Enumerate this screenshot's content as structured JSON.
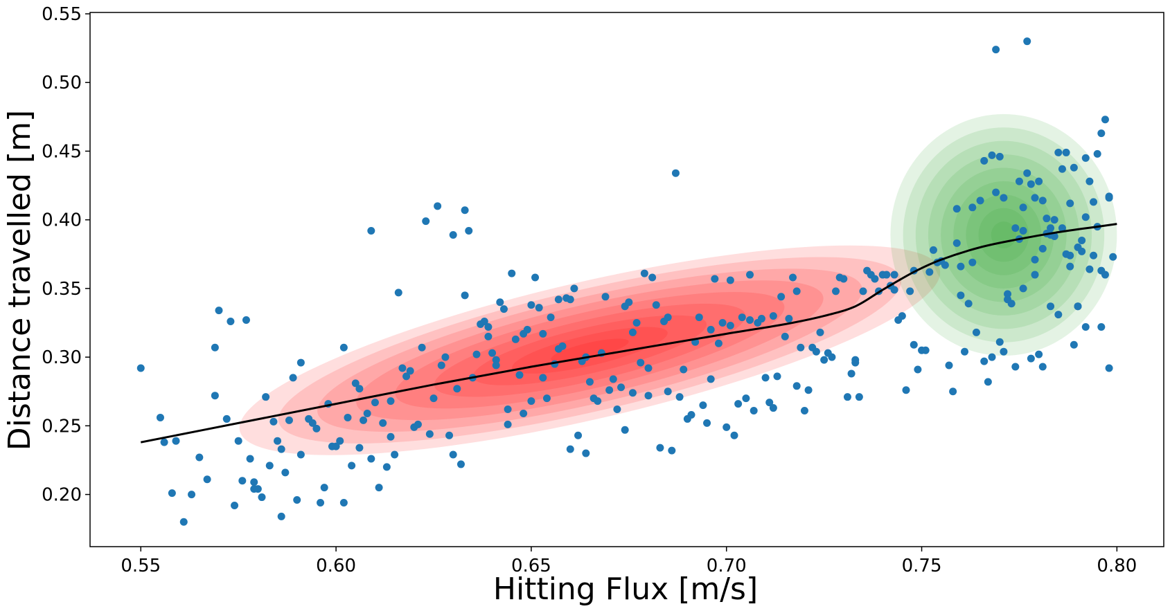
{
  "chart_data": {
    "type": "scatter",
    "xlabel": "Hitting Flux [m/s]",
    "ylabel": "Distance travelled [m]",
    "xlim": [
      0.537,
      0.812
    ],
    "ylim": [
      0.162,
      0.551
    ],
    "x_ticks": [
      "0.55",
      "0.60",
      "0.65",
      "0.70",
      "0.75",
      "0.80"
    ],
    "y_ticks": [
      "0.20",
      "0.25",
      "0.30",
      "0.35",
      "0.40",
      "0.45",
      "0.50",
      "0.55"
    ],
    "grid": false,
    "colors": {
      "points": "#1f77b4",
      "trend": "#000000",
      "cluster_red": "#ff0000",
      "cluster_green": "#2ca02c"
    },
    "points": [
      [
        0.55,
        0.292
      ],
      [
        0.555,
        0.256
      ],
      [
        0.556,
        0.238
      ],
      [
        0.558,
        0.201
      ],
      [
        0.559,
        0.239
      ],
      [
        0.561,
        0.18
      ],
      [
        0.563,
        0.2
      ],
      [
        0.565,
        0.227
      ],
      [
        0.567,
        0.211
      ],
      [
        0.569,
        0.307
      ],
      [
        0.569,
        0.272
      ],
      [
        0.57,
        0.334
      ],
      [
        0.572,
        0.255
      ],
      [
        0.573,
        0.326
      ],
      [
        0.574,
        0.192
      ],
      [
        0.575,
        0.239
      ],
      [
        0.576,
        0.21
      ],
      [
        0.577,
        0.327
      ],
      [
        0.578,
        0.226
      ],
      [
        0.579,
        0.209
      ],
      [
        0.579,
        0.204
      ],
      [
        0.58,
        0.204
      ],
      [
        0.581,
        0.198
      ],
      [
        0.582,
        0.271
      ],
      [
        0.583,
        0.221
      ],
      [
        0.584,
        0.253
      ],
      [
        0.585,
        0.239
      ],
      [
        0.586,
        0.184
      ],
      [
        0.586,
        0.233
      ],
      [
        0.587,
        0.216
      ],
      [
        0.588,
        0.254
      ],
      [
        0.589,
        0.285
      ],
      [
        0.59,
        0.196
      ],
      [
        0.591,
        0.296
      ],
      [
        0.591,
        0.229
      ],
      [
        0.593,
        0.255
      ],
      [
        0.594,
        0.252
      ],
      [
        0.595,
        0.248
      ],
      [
        0.596,
        0.194
      ],
      [
        0.597,
        0.205
      ],
      [
        0.598,
        0.266
      ],
      [
        0.599,
        0.235
      ],
      [
        0.6,
        0.235
      ],
      [
        0.601,
        0.239
      ],
      [
        0.602,
        0.194
      ],
      [
        0.602,
        0.307
      ],
      [
        0.603,
        0.256
      ],
      [
        0.604,
        0.221
      ],
      [
        0.605,
        0.281
      ],
      [
        0.606,
        0.234
      ],
      [
        0.606,
        0.277
      ],
      [
        0.607,
        0.254
      ],
      [
        0.608,
        0.259
      ],
      [
        0.609,
        0.226
      ],
      [
        0.609,
        0.392
      ],
      [
        0.61,
        0.267
      ],
      [
        0.611,
        0.205
      ],
      [
        0.612,
        0.252
      ],
      [
        0.613,
        0.22
      ],
      [
        0.614,
        0.268
      ],
      [
        0.614,
        0.242
      ],
      [
        0.615,
        0.229
      ],
      [
        0.616,
        0.347
      ],
      [
        0.617,
        0.292
      ],
      [
        0.618,
        0.286
      ],
      [
        0.619,
        0.29
      ],
      [
        0.62,
        0.249
      ],
      [
        0.621,
        0.251
      ],
      [
        0.622,
        0.307
      ],
      [
        0.623,
        0.399
      ],
      [
        0.624,
        0.244
      ],
      [
        0.625,
        0.27
      ],
      [
        0.626,
        0.41
      ],
      [
        0.627,
        0.294
      ],
      [
        0.628,
        0.3
      ],
      [
        0.629,
        0.243
      ],
      [
        0.63,
        0.229
      ],
      [
        0.63,
        0.389
      ],
      [
        0.631,
        0.277
      ],
      [
        0.632,
        0.222
      ],
      [
        0.633,
        0.345
      ],
      [
        0.633,
        0.407
      ],
      [
        0.634,
        0.392
      ],
      [
        0.635,
        0.285
      ],
      [
        0.636,
        0.302
      ],
      [
        0.637,
        0.324
      ],
      [
        0.638,
        0.326
      ],
      [
        0.639,
        0.322
      ],
      [
        0.639,
        0.315
      ],
      [
        0.64,
        0.303
      ],
      [
        0.641,
        0.298
      ],
      [
        0.641,
        0.294
      ],
      [
        0.642,
        0.34
      ],
      [
        0.643,
        0.335
      ],
      [
        0.644,
        0.262
      ],
      [
        0.644,
        0.251
      ],
      [
        0.645,
        0.361
      ],
      [
        0.646,
        0.313
      ],
      [
        0.647,
        0.287
      ],
      [
        0.648,
        0.317
      ],
      [
        0.648,
        0.259
      ],
      [
        0.649,
        0.32
      ],
      [
        0.65,
        0.268
      ],
      [
        0.65,
        0.338
      ],
      [
        0.651,
        0.358
      ],
      [
        0.652,
        0.336
      ],
      [
        0.653,
        0.317
      ],
      [
        0.653,
        0.285
      ],
      [
        0.654,
        0.27
      ],
      [
        0.655,
        0.329
      ],
      [
        0.656,
        0.295
      ],
      [
        0.657,
        0.342
      ],
      [
        0.657,
        0.306
      ],
      [
        0.658,
        0.308
      ],
      [
        0.659,
        0.343
      ],
      [
        0.66,
        0.342
      ],
      [
        0.66,
        0.233
      ],
      [
        0.661,
        0.35
      ],
      [
        0.662,
        0.243
      ],
      [
        0.663,
        0.297
      ],
      [
        0.664,
        0.23
      ],
      [
        0.664,
        0.3
      ],
      [
        0.665,
        0.282
      ],
      [
        0.666,
        0.27
      ],
      [
        0.667,
        0.268
      ],
      [
        0.668,
        0.303
      ],
      [
        0.669,
        0.344
      ],
      [
        0.67,
        0.276
      ],
      [
        0.671,
        0.284
      ],
      [
        0.672,
        0.262
      ],
      [
        0.673,
        0.278
      ],
      [
        0.674,
        0.247
      ],
      [
        0.674,
        0.337
      ],
      [
        0.675,
        0.34
      ],
      [
        0.676,
        0.274
      ],
      [
        0.676,
        0.318
      ],
      [
        0.677,
        0.325
      ],
      [
        0.678,
        0.296
      ],
      [
        0.679,
        0.361
      ],
      [
        0.68,
        0.292
      ],
      [
        0.68,
        0.272
      ],
      [
        0.681,
        0.358
      ],
      [
        0.682,
        0.338
      ],
      [
        0.683,
        0.234
      ],
      [
        0.684,
        0.326
      ],
      [
        0.685,
        0.329
      ],
      [
        0.685,
        0.275
      ],
      [
        0.686,
        0.232
      ],
      [
        0.687,
        0.434
      ],
      [
        0.688,
        0.271
      ],
      [
        0.689,
        0.291
      ],
      [
        0.69,
        0.255
      ],
      [
        0.691,
        0.258
      ],
      [
        0.692,
        0.311
      ],
      [
        0.693,
        0.329
      ],
      [
        0.694,
        0.265
      ],
      [
        0.695,
        0.252
      ],
      [
        0.696,
        0.32
      ],
      [
        0.696,
        0.284
      ],
      [
        0.697,
        0.357
      ],
      [
        0.698,
        0.31
      ],
      [
        0.699,
        0.325
      ],
      [
        0.7,
        0.249
      ],
      [
        0.701,
        0.323
      ],
      [
        0.701,
        0.356
      ],
      [
        0.702,
        0.243
      ],
      [
        0.703,
        0.266
      ],
      [
        0.704,
        0.329
      ],
      [
        0.705,
        0.27
      ],
      [
        0.706,
        0.36
      ],
      [
        0.706,
        0.327
      ],
      [
        0.707,
        0.261
      ],
      [
        0.708,
        0.325
      ],
      [
        0.709,
        0.328
      ],
      [
        0.71,
        0.285
      ],
      [
        0.711,
        0.267
      ],
      [
        0.712,
        0.33
      ],
      [
        0.712,
        0.263
      ],
      [
        0.713,
        0.286
      ],
      [
        0.714,
        0.344
      ],
      [
        0.715,
        0.315
      ],
      [
        0.716,
        0.328
      ],
      [
        0.717,
        0.358
      ],
      [
        0.718,
        0.279
      ],
      [
        0.718,
        0.348
      ],
      [
        0.719,
        0.307
      ],
      [
        0.72,
        0.261
      ],
      [
        0.721,
        0.276
      ],
      [
        0.722,
        0.307
      ],
      [
        0.723,
        0.304
      ],
      [
        0.724,
        0.318
      ],
      [
        0.725,
        0.298
      ],
      [
        0.726,
        0.303
      ],
      [
        0.727,
        0.3
      ],
      [
        0.728,
        0.348
      ],
      [
        0.729,
        0.358
      ],
      [
        0.73,
        0.357
      ],
      [
        0.731,
        0.271
      ],
      [
        0.732,
        0.288
      ],
      [
        0.733,
        0.298
      ],
      [
        0.733,
        0.296
      ],
      [
        0.734,
        0.271
      ],
      [
        0.735,
        0.348
      ],
      [
        0.736,
        0.363
      ],
      [
        0.737,
        0.36
      ],
      [
        0.738,
        0.357
      ],
      [
        0.739,
        0.348
      ],
      [
        0.74,
        0.36
      ],
      [
        0.741,
        0.36
      ],
      [
        0.742,
        0.352
      ],
      [
        0.743,
        0.349
      ],
      [
        0.743,
        0.36
      ],
      [
        0.744,
        0.327
      ],
      [
        0.745,
        0.33
      ],
      [
        0.746,
        0.276
      ],
      [
        0.747,
        0.348
      ],
      [
        0.748,
        0.363
      ],
      [
        0.748,
        0.309
      ],
      [
        0.749,
        0.291
      ],
      [
        0.75,
        0.305
      ],
      [
        0.751,
        0.305
      ],
      [
        0.752,
        0.362
      ],
      [
        0.753,
        0.378
      ],
      [
        0.754,
        0.369
      ],
      [
        0.755,
        0.37
      ],
      [
        0.756,
        0.367
      ],
      [
        0.757,
        0.294
      ],
      [
        0.758,
        0.275
      ],
      [
        0.759,
        0.383
      ],
      [
        0.76,
        0.366
      ],
      [
        0.761,
        0.304
      ],
      [
        0.762,
        0.339
      ],
      [
        0.763,
        0.369
      ],
      [
        0.764,
        0.318
      ],
      [
        0.765,
        0.414
      ],
      [
        0.766,
        0.297
      ],
      [
        0.767,
        0.282
      ],
      [
        0.768,
        0.3
      ],
      [
        0.769,
        0.524
      ],
      [
        0.77,
        0.311
      ],
      [
        0.771,
        0.304
      ],
      [
        0.772,
        0.346
      ],
      [
        0.773,
        0.339
      ],
      [
        0.774,
        0.293
      ],
      [
        0.775,
        0.386
      ],
      [
        0.776,
        0.392
      ],
      [
        0.777,
        0.53
      ],
      [
        0.778,
        0.299
      ],
      [
        0.779,
        0.371
      ],
      [
        0.78,
        0.302
      ],
      [
        0.781,
        0.293
      ],
      [
        0.781,
        0.379
      ],
      [
        0.782,
        0.39
      ],
      [
        0.783,
        0.394
      ],
      [
        0.784,
        0.388
      ],
      [
        0.785,
        0.331
      ],
      [
        0.786,
        0.394
      ],
      [
        0.787,
        0.375
      ],
      [
        0.788,
        0.366
      ],
      [
        0.789,
        0.309
      ],
      [
        0.79,
        0.38
      ],
      [
        0.791,
        0.385
      ],
      [
        0.792,
        0.402
      ],
      [
        0.792,
        0.322
      ],
      [
        0.793,
        0.364
      ],
      [
        0.794,
        0.374
      ],
      [
        0.795,
        0.395
      ],
      [
        0.796,
        0.322
      ],
      [
        0.797,
        0.36
      ],
      [
        0.798,
        0.417
      ],
      [
        0.798,
        0.292
      ],
      [
        0.799,
        0.373
      ],
      [
        0.759,
        0.408
      ],
      [
        0.763,
        0.409
      ],
      [
        0.766,
        0.443
      ],
      [
        0.768,
        0.447
      ],
      [
        0.769,
        0.42
      ],
      [
        0.77,
        0.446
      ],
      [
        0.771,
        0.416
      ],
      [
        0.774,
        0.394
      ],
      [
        0.775,
        0.428
      ],
      [
        0.776,
        0.409
      ],
      [
        0.777,
        0.434
      ],
      [
        0.778,
        0.426
      ],
      [
        0.779,
        0.416
      ],
      [
        0.78,
        0.428
      ],
      [
        0.781,
        0.414
      ],
      [
        0.782,
        0.401
      ],
      [
        0.783,
        0.389
      ],
      [
        0.784,
        0.4
      ],
      [
        0.785,
        0.449
      ],
      [
        0.786,
        0.437
      ],
      [
        0.787,
        0.449
      ],
      [
        0.788,
        0.412
      ],
      [
        0.789,
        0.438
      ],
      [
        0.79,
        0.337
      ],
      [
        0.791,
        0.377
      ],
      [
        0.792,
        0.445
      ],
      [
        0.793,
        0.428
      ],
      [
        0.794,
        0.413
      ],
      [
        0.795,
        0.448
      ],
      [
        0.796,
        0.463
      ],
      [
        0.797,
        0.473
      ],
      [
        0.798,
        0.416
      ],
      [
        0.772,
        0.342
      ],
      [
        0.776,
        0.35
      ],
      [
        0.779,
        0.36
      ],
      [
        0.783,
        0.337
      ],
      [
        0.788,
        0.374
      ],
      [
        0.79,
        0.337
      ],
      [
        0.796,
        0.363
      ],
      [
        0.76,
        0.345
      ]
    ],
    "trend_line": {
      "x": [
        0.55,
        0.575,
        0.6,
        0.625,
        0.65,
        0.675,
        0.7,
        0.715,
        0.725,
        0.733,
        0.74,
        0.748,
        0.755,
        0.765,
        0.775,
        0.785,
        0.795,
        0.8
      ],
      "y": [
        0.238,
        0.252,
        0.266,
        0.28,
        0.293,
        0.305,
        0.317,
        0.324,
        0.33,
        0.337,
        0.349,
        0.362,
        0.371,
        0.38,
        0.386,
        0.391,
        0.395,
        0.397
      ]
    },
    "clusters": [
      {
        "color": "#ff0000",
        "center": [
          0.665,
          0.305
        ],
        "rx": 0.092,
        "ry": 0.05,
        "angle_deg": 13
      },
      {
        "color": "#2ca02c",
        "center": [
          0.771,
          0.389
        ],
        "rx": 0.029,
        "ry": 0.088,
        "angle_deg": 0
      }
    ]
  }
}
